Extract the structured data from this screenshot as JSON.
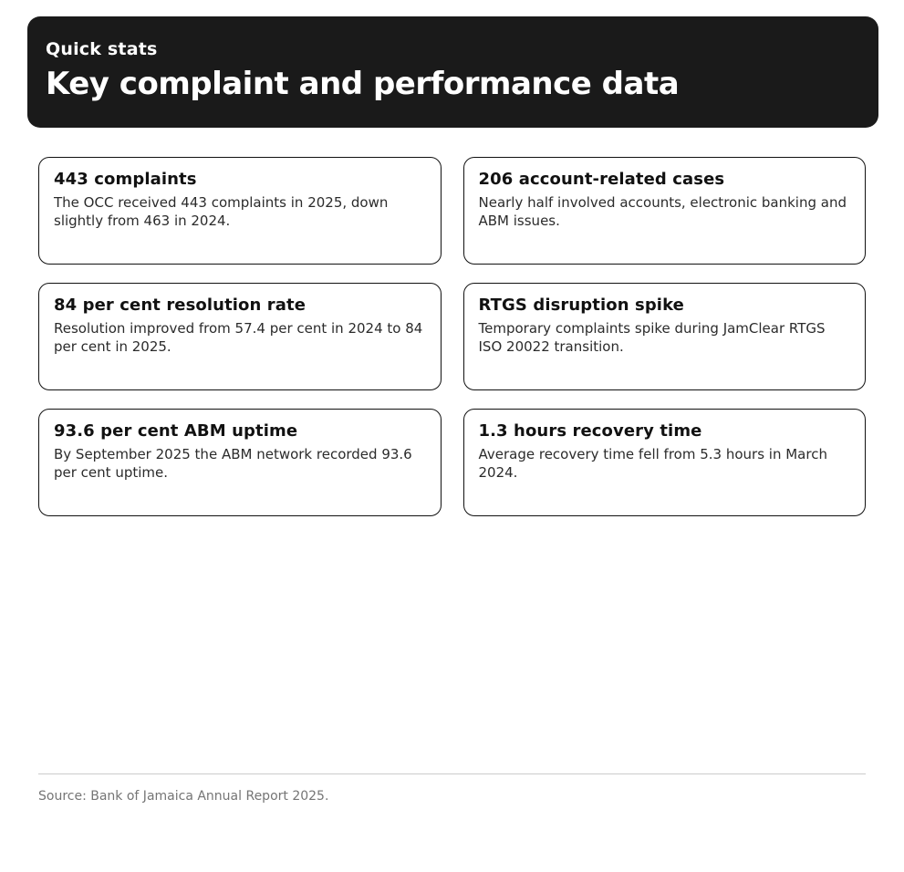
{
  "header": {
    "eyebrow": "Quick stats",
    "title": "Key complaint and performance data"
  },
  "cards": [
    {
      "title": "443 complaints",
      "body": "The OCC received 443 complaints in 2025, down slightly from 463 in 2024."
    },
    {
      "title": "206 account-related cases",
      "body": "Nearly half involved accounts, electronic banking and ABM issues."
    },
    {
      "title": "84 per cent resolution rate",
      "body": "Resolution improved from 57.4 per cent in 2024 to 84 per cent in 2025."
    },
    {
      "title": "RTGS disruption spike",
      "body": "Temporary complaints spike during JamClear RTGS ISO 20022 transition."
    },
    {
      "title": "93.6 per cent ABM uptime",
      "body": "By September 2025 the ABM network recorded 93.6 per cent uptime."
    },
    {
      "title": "1.3 hours recovery time",
      "body": "Average recovery time fell from 5.3 hours in March 2024."
    }
  ],
  "footer": {
    "source": "Source: Bank of Jamaica Annual Report 2025."
  },
  "colors": {
    "header_bg": "#1a1a1a",
    "header_text": "#ffffff",
    "card_border": "#111111",
    "card_title_text": "#111111",
    "card_body_text": "#2b2b2b",
    "divider": "#cccccc",
    "footer_text": "#757575",
    "page_bg": "#ffffff"
  }
}
